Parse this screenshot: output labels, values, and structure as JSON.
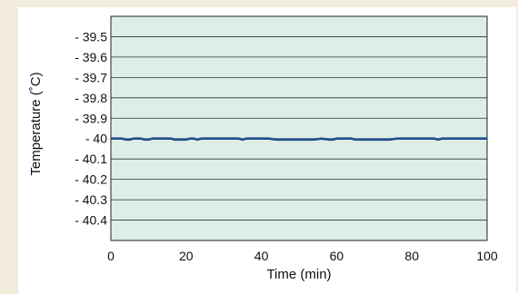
{
  "chart_data": {
    "type": "line",
    "title": "",
    "xlabel": "Time (min)",
    "ylabel": "Temperature (˚C)",
    "xlim": [
      0,
      100
    ],
    "ylim": [
      -40.5,
      -39.4
    ],
    "x_ticks": [
      0,
      20,
      40,
      60,
      80,
      100
    ],
    "x_tick_labels": [
      "0",
      "20",
      "40",
      "60",
      "80",
      "100"
    ],
    "y_ticks": [
      -39.5,
      -39.6,
      -39.7,
      -39.8,
      -39.9,
      -40,
      -40.1,
      -40.2,
      -40.3,
      -40.4
    ],
    "y_tick_labels": [
      "- 39.5",
      "- 39.6",
      "- 39.7",
      "- 39.8",
      "- 39.9",
      "- 40",
      "- 40.1",
      "- 40.2",
      "- 40.3",
      "- 40.4"
    ],
    "grid": "horizontal",
    "colors": {
      "line": "#1f4e8c",
      "plot_background": "#dceee6",
      "page_background": "#f2ecdc"
    },
    "series": [
      {
        "x": [
          0,
          3,
          4,
          5,
          6,
          7,
          8,
          9,
          10,
          11,
          12,
          14,
          16,
          17,
          18,
          20,
          21,
          22,
          23,
          24,
          25,
          26,
          28,
          30,
          32,
          34,
          35,
          36,
          38,
          40,
          42,
          44,
          45,
          46,
          48,
          50,
          52,
          54,
          56,
          58,
          59,
          60,
          61,
          62,
          63,
          64,
          65,
          66,
          67,
          68,
          70,
          72,
          74,
          76,
          78,
          79,
          80,
          82,
          84,
          86,
          87,
          88,
          89,
          90,
          92,
          94,
          96,
          97,
          98,
          100
        ],
        "y": [
          -40,
          -40,
          -40.005,
          -40.005,
          -40,
          -40,
          -40,
          -40.005,
          -40.005,
          -40,
          -40,
          -40,
          -40,
          -40.005,
          -40.005,
          -40.005,
          -40,
          -40,
          -40.005,
          -40,
          -40,
          -40,
          -40,
          -40,
          -40,
          -40,
          -40.005,
          -40,
          -40,
          -40,
          -40,
          -40.005,
          -40.005,
          -40.005,
          -40.005,
          -40.005,
          -40.005,
          -40.005,
          -40,
          -40.005,
          -40.005,
          -40,
          -40,
          -40,
          -40,
          -40,
          -40.005,
          -40.005,
          -40.005,
          -40.005,
          -40.005,
          -40.005,
          -40.005,
          -40,
          -40,
          -40,
          -40,
          -40,
          -40,
          -40,
          -40.005,
          -40,
          -40,
          -40,
          -40,
          -40,
          -40,
          -40,
          -40,
          -40
        ]
      }
    ]
  }
}
